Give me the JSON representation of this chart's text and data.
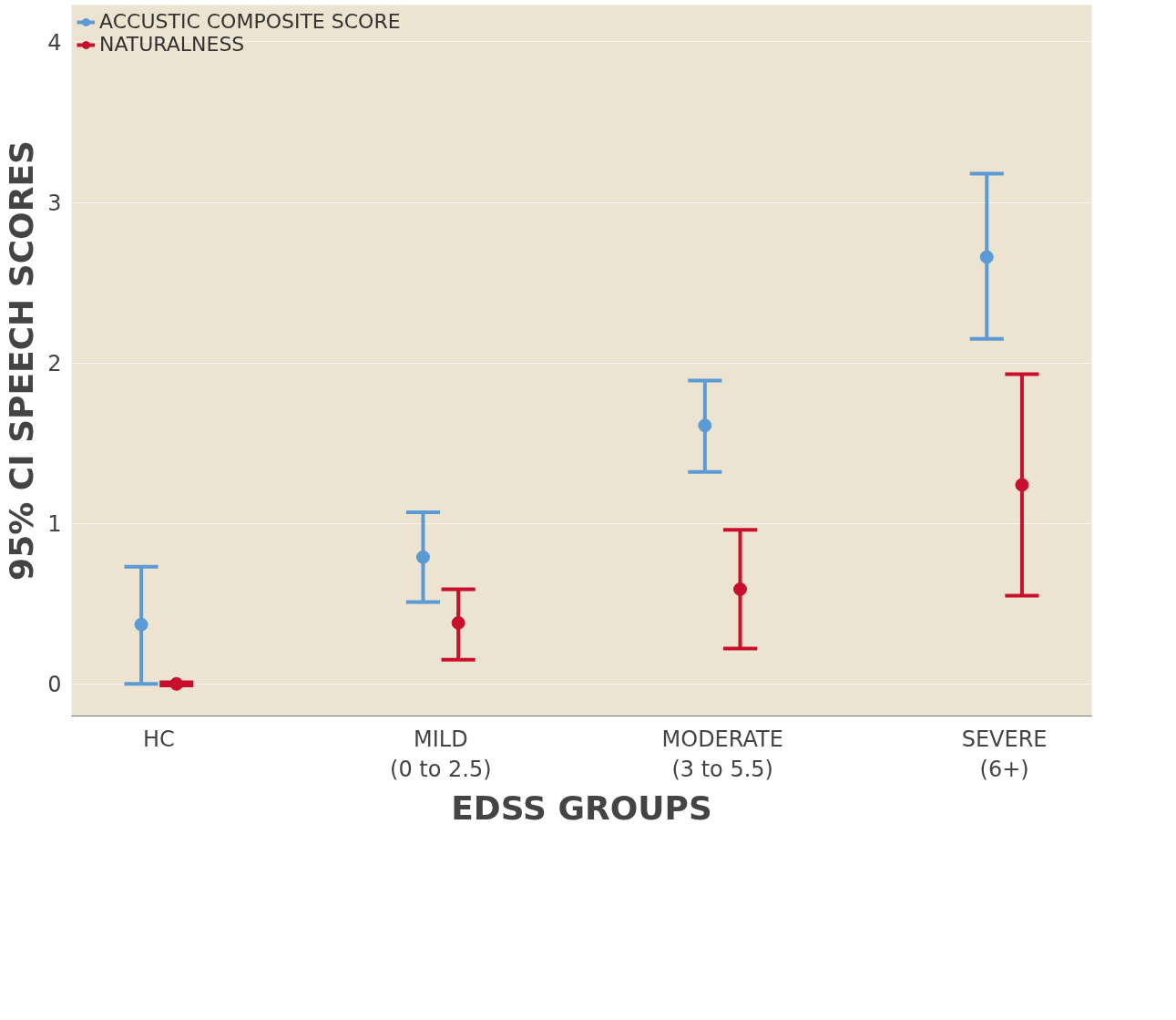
{
  "chart_data": {
    "type": "scatter",
    "xlabel": "EDSS GROUPS",
    "ylabel": "95% CI SPEECH SCORES",
    "categories": [
      "HC",
      "MILD\n(0 to 2.5)",
      "MODERATE\n(3 to 5.5)",
      "SEVERE\n(6+)"
    ],
    "series": [
      {
        "name": "ACCUSTIC COMPOSITE SCORE",
        "color": "#5b9bd5",
        "values": [
          0.37,
          0.79,
          1.61,
          2.66
        ],
        "errors": [
          [
            0.0,
            0.73
          ],
          [
            0.51,
            1.07
          ],
          [
            1.32,
            1.89
          ],
          [
            2.15,
            3.18
          ]
        ]
      },
      {
        "name": "NATURALNESS",
        "color": "#c8102e",
        "values": [
          0.0,
          0.38,
          0.59,
          1.24
        ],
        "errors": [
          [
            -0.01,
            0.01
          ],
          [
            0.15,
            0.59
          ],
          [
            0.22,
            0.96
          ],
          [
            0.55,
            1.93
          ]
        ]
      }
    ],
    "ylim": [
      -0.2,
      4.23
    ],
    "yticks": [
      0,
      1,
      2,
      3,
      4
    ],
    "grid": "y",
    "legend": "top left",
    "marker": "circle"
  }
}
